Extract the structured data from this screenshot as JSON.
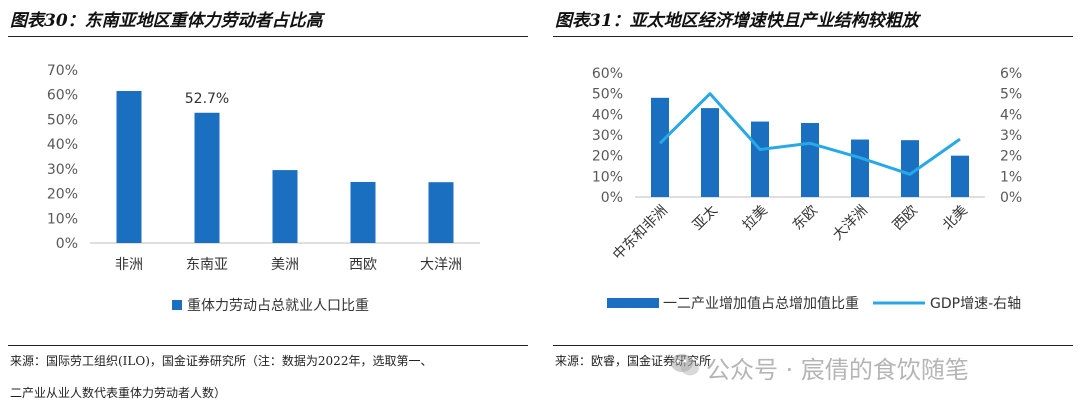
{
  "left_panel": {
    "title": "图表30：东南亚地区重体力劳动者占比高",
    "source": "来源：国际劳工组织(ILO)，国金证券研究所（注：数据为2022年，选取第一、",
    "source_line2": "二产业从业人数代表重体力劳动者人数）"
  },
  "right_panel": {
    "title": "图表31：亚太地区经济增速快且产业结构较粗放",
    "source": "来源：欧睿，国金证券研究所"
  },
  "watermark": "公众号 · 宸倩的食饮随笔",
  "colors": {
    "bar": "#1b6fc0",
    "line": "#28a8e6",
    "axis": "#bfbfbf",
    "text": "#595959"
  },
  "chart_data": [
    {
      "type": "bar",
      "categories": [
        "非洲",
        "东南亚",
        "美洲",
        "西欧",
        "大洋洲"
      ],
      "series": [
        {
          "name": "重体力劳动占总就业人口比重",
          "values": [
            61.5,
            52.7,
            29.5,
            24.7,
            24.6
          ]
        }
      ],
      "data_labels": [
        {
          "index": 1,
          "text": "52.7%"
        }
      ],
      "yticks": [
        "0%",
        "10%",
        "20%",
        "30%",
        "40%",
        "50%",
        "60%",
        "70%"
      ],
      "ylim": [
        0,
        70
      ],
      "legend": "bottom",
      "grid": false
    },
    {
      "type": "bar+line",
      "categories": [
        "中东和非洲",
        "亚太",
        "拉美",
        "东欧",
        "大洋洲",
        "西欧",
        "北美"
      ],
      "series": [
        {
          "name": "一二产业增加值占总增加值比重",
          "type": "bar",
          "axis": "left",
          "values": [
            48,
            43,
            36.5,
            35.8,
            27.8,
            27.5,
            20
          ]
        },
        {
          "name": "GDP增速-右轴",
          "type": "line",
          "axis": "right",
          "values": [
            2.6,
            5.0,
            2.3,
            2.6,
            1.9,
            1.1,
            2.8
          ]
        }
      ],
      "yticks_left": [
        "0%",
        "10%",
        "20%",
        "30%",
        "40%",
        "50%",
        "60%"
      ],
      "yticks_right": [
        "0%",
        "1%",
        "2%",
        "3%",
        "4%",
        "5%",
        "6%"
      ],
      "ylim_left": [
        0,
        60
      ],
      "ylim_right": [
        0,
        6
      ],
      "legend": "bottom",
      "grid": false
    }
  ]
}
